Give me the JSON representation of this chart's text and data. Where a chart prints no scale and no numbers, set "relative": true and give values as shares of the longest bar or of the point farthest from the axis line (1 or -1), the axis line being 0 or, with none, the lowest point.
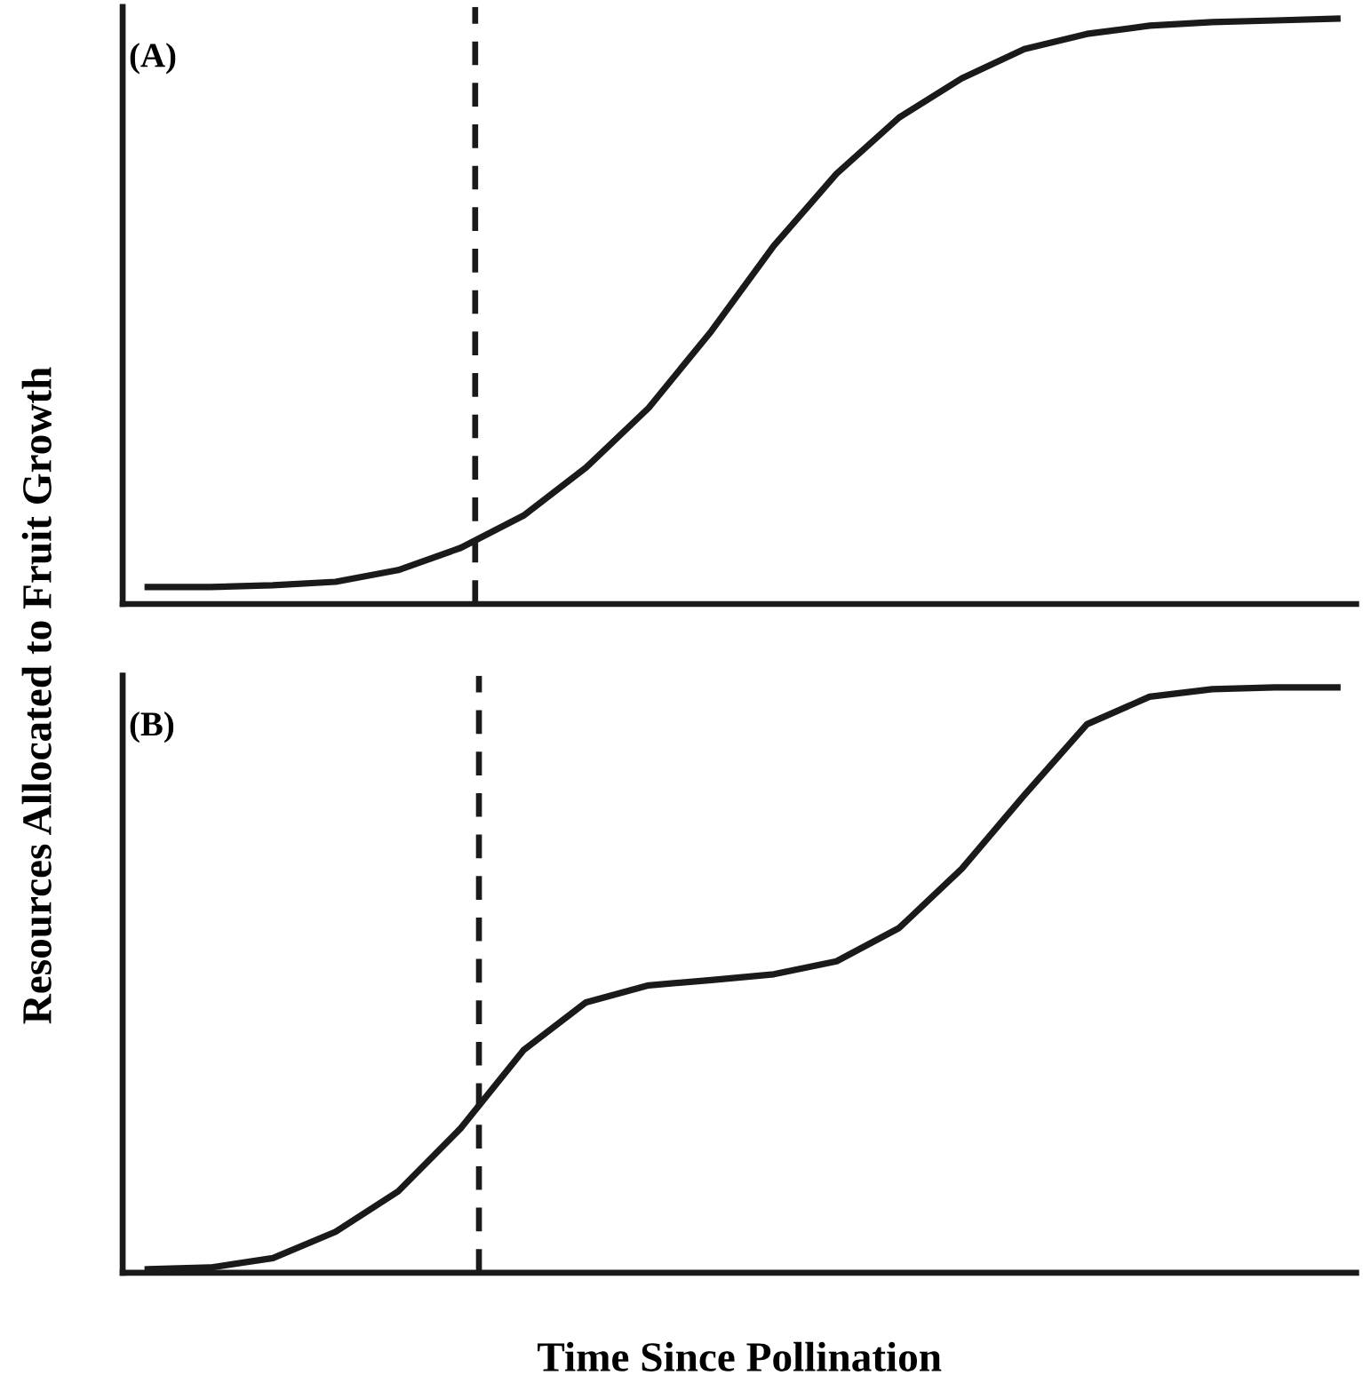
{
  "chart_data": [
    {
      "type": "line",
      "relative": true,
      "categories": [
        null,
        null,
        null,
        null,
        null,
        null,
        null,
        null,
        null,
        null,
        null,
        null,
        null,
        null,
        null,
        null,
        null,
        null,
        null,
        null
      ],
      "series": [
        {
          "color": "#1a1a1a",
          "values": [
            0.029,
            0.029,
            0.032,
            0.038,
            0.058,
            0.096,
            0.151,
            0.233,
            0.335,
            0.466,
            0.612,
            0.735,
            0.831,
            0.898,
            0.948,
            0.974,
            0.988,
            0.994,
            0.997,
            1
          ]
        }
      ],
      "annotations": [
        "(A)"
      ],
      "ylabel": "Resources Allocated to Fruit Growth",
      "tick_labels": false,
      "grid": false,
      "legend": false
    },
    {
      "type": "line",
      "relative": true,
      "categories": [
        null,
        null,
        null,
        null,
        null,
        null,
        null,
        null,
        null,
        null,
        null,
        null,
        null,
        null,
        null,
        null,
        null,
        null,
        null,
        null
      ],
      "series": [
        {
          "color": "#1a1a1a",
          "values": [
            0.006,
            0.009,
            0.025,
            0.07,
            0.139,
            0.247,
            0.38,
            0.462,
            0.491,
            0.5,
            0.51,
            0.532,
            0.589,
            0.69,
            0.816,
            0.937,
            0.984,
            0.997,
            1,
            1
          ]
        }
      ],
      "annotations": [
        "(B)"
      ],
      "xlabel": "Time Since Pollination",
      "tick_labels": false,
      "grid": false,
      "legend": false
    }
  ]
}
